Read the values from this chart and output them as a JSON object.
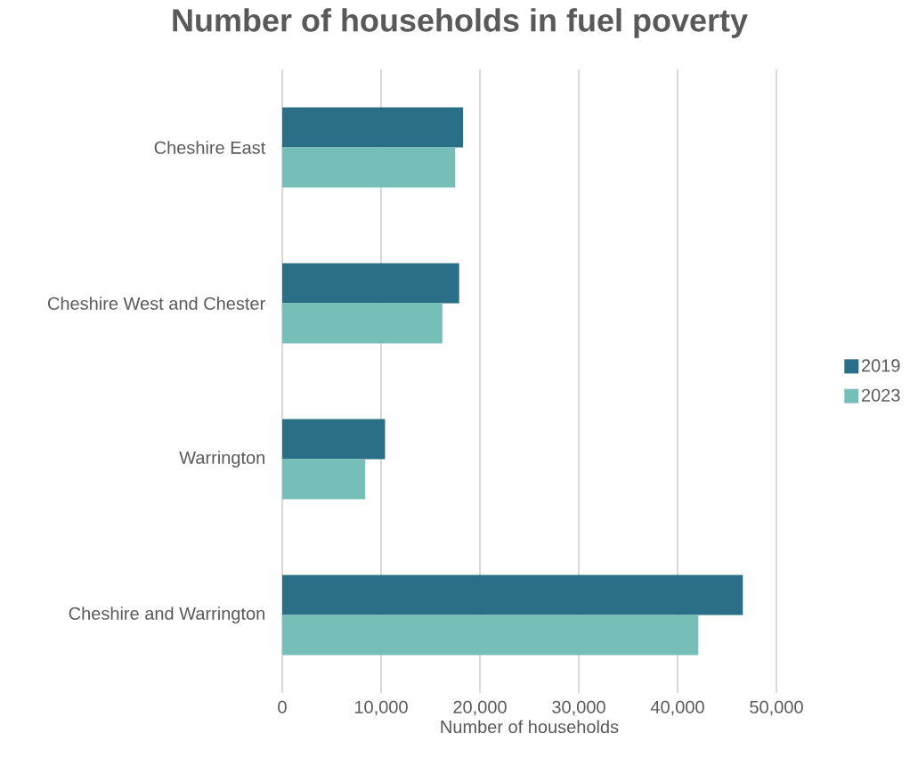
{
  "chart_data": {
    "type": "bar",
    "orientation": "horizontal",
    "title": "Number of households in fuel poverty",
    "xlabel": "Number of households",
    "categories": [
      "Cheshire East",
      "Cheshire West and Chester",
      "Warrington",
      "Cheshire and Warrington"
    ],
    "series": [
      {
        "name": "2019",
        "color": "#2b6e88",
        "values": [
          18300,
          17900,
          10400,
          46600
        ]
      },
      {
        "name": "2023",
        "color": "#76bfb8",
        "values": [
          17500,
          16200,
          8400,
          42100
        ]
      }
    ],
    "xlim": [
      0,
      50000
    ],
    "xticks": [
      {
        "value": 0,
        "label": "0"
      },
      {
        "value": 10000,
        "label": "10,000"
      },
      {
        "value": 20000,
        "label": "20,000"
      },
      {
        "value": 30000,
        "label": "30,000"
      },
      {
        "value": 40000,
        "label": "40,000"
      },
      {
        "value": 50000,
        "label": "50,000"
      }
    ],
    "grid": "x",
    "legend": "right"
  }
}
